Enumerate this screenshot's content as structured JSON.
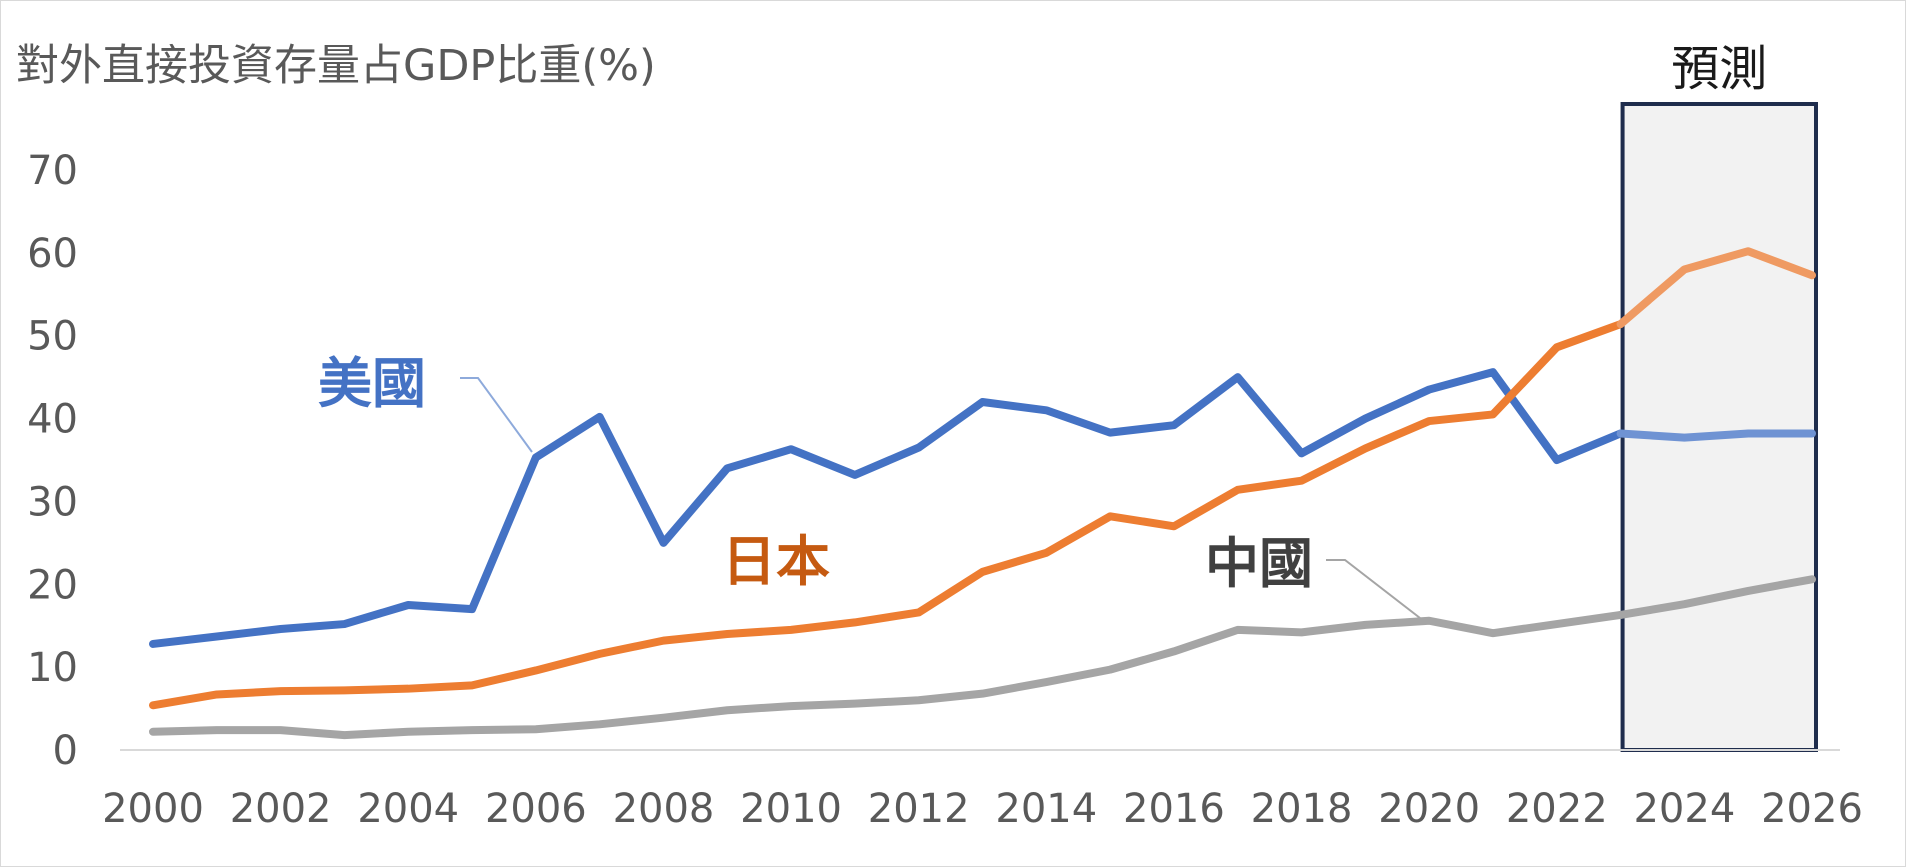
{
  "chart_data": {
    "type": "line",
    "title": "對外直接投資存量占GDP比重(%)",
    "forecast_label": "預測",
    "forecast_range": [
      2023,
      2026
    ],
    "xlim": [
      2000,
      2026
    ],
    "ylim": [
      0,
      70
    ],
    "x_ticks": [
      2000,
      2002,
      2004,
      2006,
      2008,
      2010,
      2012,
      2014,
      2016,
      2018,
      2020,
      2022,
      2024,
      2026
    ],
    "y_ticks": [
      0,
      10,
      20,
      30,
      40,
      50,
      60,
      70
    ],
    "grid": false,
    "x": [
      2000,
      2001,
      2002,
      2003,
      2004,
      2005,
      2006,
      2007,
      2008,
      2009,
      2010,
      2011,
      2012,
      2013,
      2014,
      2015,
      2016,
      2017,
      2018,
      2019,
      2020,
      2021,
      2022,
      2023,
      2024,
      2025,
      2026
    ],
    "series": [
      {
        "name": "美國",
        "color": "#4472c4",
        "forecast_color": "#6f93d3",
        "values": [
          12.8,
          13.7,
          14.6,
          15.2,
          17.5,
          17.0,
          35.3,
          40.2,
          25.0,
          34.0,
          36.3,
          33.2,
          36.5,
          42.0,
          41.0,
          38.3,
          39.2,
          45.0,
          35.8,
          40.0,
          43.5,
          45.6,
          35.0,
          38.2,
          37.7,
          38.2,
          38.2
        ]
      },
      {
        "name": "日本",
        "color": "#ed7d31",
        "forecast_color": "#ef9a62",
        "values": [
          5.4,
          6.7,
          7.1,
          7.2,
          7.4,
          7.8,
          9.6,
          11.6,
          13.2,
          14.0,
          14.5,
          15.4,
          16.6,
          21.5,
          23.8,
          28.2,
          27.0,
          31.4,
          32.5,
          36.4,
          39.7,
          40.5,
          48.6,
          51.4,
          58.0,
          60.2,
          57.3
        ]
      },
      {
        "name": "中國",
        "color": "#a5a5a5",
        "forecast_color": "#a5a5a5",
        "values": [
          2.2,
          2.4,
          2.4,
          1.8,
          2.2,
          2.4,
          2.5,
          3.1,
          3.9,
          4.8,
          5.3,
          5.6,
          6.0,
          6.8,
          8.2,
          9.7,
          11.9,
          14.5,
          14.2,
          15.1,
          15.6,
          14.1,
          15.2,
          16.3,
          17.6,
          19.2,
          20.6
        ]
      }
    ]
  }
}
